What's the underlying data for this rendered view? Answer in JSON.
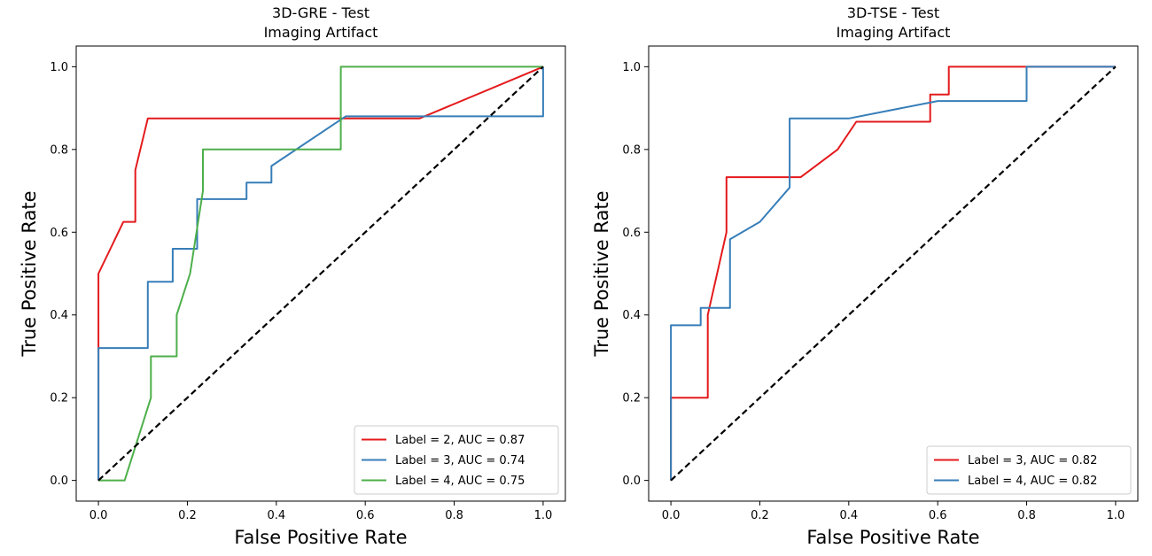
{
  "chart_data": [
    {
      "type": "line",
      "title": "3D-GRE - Test",
      "subtitle": "Imaging Artifact",
      "xlabel": "False Positive Rate",
      "ylabel": "True Positive Rate",
      "xlim": [
        -0.05,
        1.05
      ],
      "ylim": [
        -0.05,
        1.05
      ],
      "xticks": [
        0.0,
        0.2,
        0.4,
        0.6,
        0.8,
        1.0
      ],
      "yticks": [
        0.0,
        0.2,
        0.4,
        0.6,
        0.8,
        1.0
      ],
      "tick_labels": [
        "0.0",
        "0.2",
        "0.4",
        "0.6",
        "0.8",
        "1.0"
      ],
      "legend_position": "lower-right",
      "diagonal": [
        [
          0,
          0
        ],
        [
          1,
          1
        ]
      ],
      "series": [
        {
          "name": "Label = 2, AUC = 0.87",
          "color": "#e41a1c",
          "points": [
            [
              0,
              0
            ],
            [
              0,
              0.5
            ],
            [
              0.056,
              0.625
            ],
            [
              0.083,
              0.625
            ],
            [
              0.083,
              0.75
            ],
            [
              0.111,
              0.875
            ],
            [
              0.722,
              0.875
            ],
            [
              1,
              1
            ]
          ]
        },
        {
          "name": "Label = 3, AUC = 0.74",
          "color": "#377eb8",
          "points": [
            [
              0,
              0
            ],
            [
              0,
              0.32
            ],
            [
              0.111,
              0.32
            ],
            [
              0.111,
              0.48
            ],
            [
              0.167,
              0.48
            ],
            [
              0.167,
              0.56
            ],
            [
              0.222,
              0.56
            ],
            [
              0.222,
              0.68
            ],
            [
              0.333,
              0.68
            ],
            [
              0.333,
              0.72
            ],
            [
              0.389,
              0.72
            ],
            [
              0.389,
              0.76
            ],
            [
              0.556,
              0.88
            ],
            [
              1,
              0.88
            ],
            [
              1,
              1
            ]
          ]
        },
        {
          "name": "Label = 4, AUC = 0.75",
          "color": "#4daf4a",
          "points": [
            [
              0,
              0
            ],
            [
              0.059,
              0
            ],
            [
              0.118,
              0.2
            ],
            [
              0.118,
              0.3
            ],
            [
              0.176,
              0.3
            ],
            [
              0.176,
              0.4
            ],
            [
              0.206,
              0.5
            ],
            [
              0.235,
              0.7
            ],
            [
              0.235,
              0.8
            ],
            [
              0.545,
              0.8
            ],
            [
              0.545,
              1.0
            ],
            [
              1,
              1
            ]
          ]
        }
      ]
    },
    {
      "type": "line",
      "title": "3D-TSE - Test",
      "subtitle": "Imaging Artifact",
      "xlabel": "False Positive Rate",
      "ylabel": "True Positive Rate",
      "xlim": [
        -0.05,
        1.05
      ],
      "ylim": [
        -0.05,
        1.05
      ],
      "xticks": [
        0.0,
        0.2,
        0.4,
        0.6,
        0.8,
        1.0
      ],
      "yticks": [
        0.0,
        0.2,
        0.4,
        0.6,
        0.8,
        1.0
      ],
      "tick_labels": [
        "0.0",
        "0.2",
        "0.4",
        "0.6",
        "0.8",
        "1.0"
      ],
      "legend_position": "lower-right",
      "diagonal": [
        [
          0,
          0
        ],
        [
          1,
          1
        ]
      ],
      "series": [
        {
          "name": "Label = 3, AUC = 0.82",
          "color": "#e41a1c",
          "points": [
            [
              0,
              0
            ],
            [
              0,
              0.2
            ],
            [
              0.083,
              0.2
            ],
            [
              0.083,
              0.4
            ],
            [
              0.125,
              0.6
            ],
            [
              0.125,
              0.733
            ],
            [
              0.292,
              0.733
            ],
            [
              0.375,
              0.8
            ],
            [
              0.417,
              0.867
            ],
            [
              0.583,
              0.867
            ],
            [
              0.583,
              0.933
            ],
            [
              0.625,
              0.933
            ],
            [
              0.625,
              1.0
            ],
            [
              1,
              1
            ]
          ]
        },
        {
          "name": "Label = 4, AUC = 0.82",
          "color": "#377eb8",
          "points": [
            [
              0,
              0
            ],
            [
              0,
              0.375
            ],
            [
              0.067,
              0.375
            ],
            [
              0.067,
              0.417
            ],
            [
              0.133,
              0.417
            ],
            [
              0.133,
              0.583
            ],
            [
              0.2,
              0.625
            ],
            [
              0.267,
              0.708
            ],
            [
              0.267,
              0.875
            ],
            [
              0.4,
              0.875
            ],
            [
              0.6,
              0.917
            ],
            [
              0.8,
              0.917
            ],
            [
              0.8,
              1.0
            ],
            [
              1,
              1
            ]
          ]
        }
      ]
    }
  ]
}
